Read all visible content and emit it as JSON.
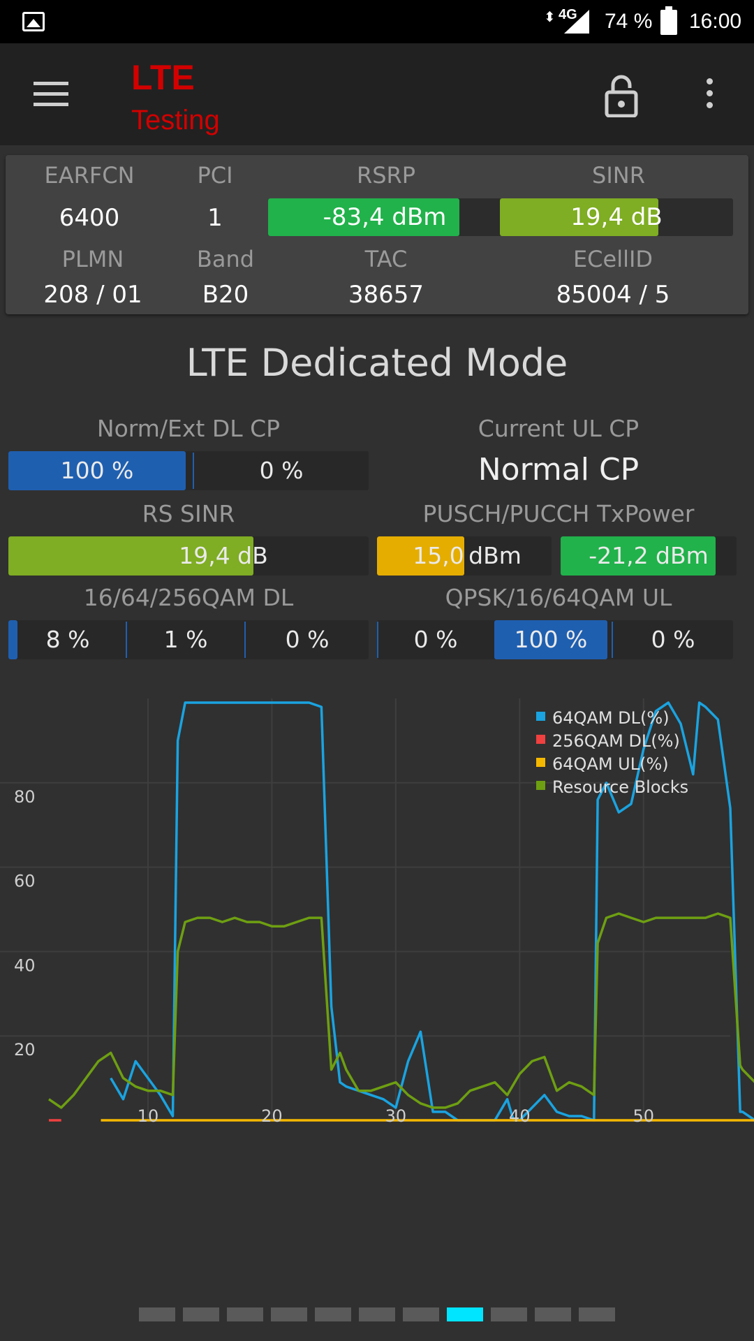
{
  "status_bar": {
    "network": "4G",
    "battery": "74 %",
    "time": "16:00"
  },
  "app": {
    "title_line1": "LTE",
    "title_line2": "Testing"
  },
  "cell_info": {
    "earfcn_label": "EARFCN",
    "earfcn": "6400",
    "pci_label": "PCI",
    "pci": "1",
    "rsrp_label": "RSRP",
    "rsrp": "-83,4 dBm",
    "rsrp_fill": 0.82,
    "sinr_label": "SINR",
    "sinr": "19,4 dB",
    "sinr_fill": 0.68,
    "plmn_label": "PLMN",
    "plmn": "208 / 01",
    "band_label": "Band",
    "band": "B20",
    "tac_label": "TAC",
    "tac": "38657",
    "ecellid_label": "ECellID",
    "ecellid": "85004 / 5"
  },
  "dedicated": {
    "title": "LTE Dedicated Mode",
    "dl_cp_label": "Norm/Ext DL CP",
    "dl_cp_normal": "100 %",
    "dl_cp_ext": "0 %",
    "ul_cp_label": "Current UL CP",
    "ul_cp_value": "Normal CP",
    "rs_sinr_label": "RS SINR",
    "rs_sinr": "19,4 dB",
    "rs_sinr_fill": 0.68,
    "txpower_label": "PUSCH/PUCCH TxPower",
    "pusch_value": "15,0",
    "pusch_unit": "dBm",
    "pusch_fill": 0.5,
    "pucch": "-21,2 dBm",
    "pucch_fill": 0.88,
    "qam_dl_label": "16/64/256QAM DL",
    "qam_dl": [
      "8 %",
      "1 %",
      "0 %"
    ],
    "qam_ul_label": "QPSK/16/64QAM UL",
    "qam_ul": [
      "0 %",
      "100 %",
      "0 %"
    ]
  },
  "chart_data": {
    "type": "line",
    "xlim": [
      2,
      57
    ],
    "ylim": [
      0,
      100
    ],
    "x_ticks": [
      10,
      20,
      30,
      40,
      50
    ],
    "y_ticks": [
      20,
      40,
      60,
      80
    ],
    "grid": true,
    "legend_position": "top-right",
    "series": [
      {
        "name": "64QAM DL(%)",
        "color": "#1aa3e0",
        "points": [
          [
            7,
            10
          ],
          [
            8,
            5
          ],
          [
            9,
            14
          ],
          [
            10,
            10
          ],
          [
            11,
            6
          ],
          [
            12,
            1
          ],
          [
            12.4,
            90
          ],
          [
            13,
            99
          ],
          [
            14,
            99
          ],
          [
            15,
            99
          ],
          [
            16,
            99
          ],
          [
            17,
            99
          ],
          [
            18,
            99
          ],
          [
            19,
            99
          ],
          [
            20,
            99
          ],
          [
            21,
            99
          ],
          [
            22,
            99
          ],
          [
            23,
            99
          ],
          [
            24,
            98
          ],
          [
            24.8,
            27
          ],
          [
            25.5,
            9
          ],
          [
            26,
            8
          ],
          [
            27,
            7
          ],
          [
            28,
            6
          ],
          [
            29,
            5
          ],
          [
            30,
            3
          ],
          [
            31,
            14
          ],
          [
            32,
            21
          ],
          [
            33,
            2
          ],
          [
            34,
            2
          ],
          [
            35,
            0
          ],
          [
            36,
            0
          ],
          [
            37,
            0
          ],
          [
            38,
            0
          ],
          [
            39,
            5
          ],
          [
            39.5,
            0
          ],
          [
            40,
            0
          ],
          [
            41,
            3
          ],
          [
            42,
            6
          ],
          [
            43,
            2
          ],
          [
            44,
            1
          ],
          [
            45,
            1
          ],
          [
            46,
            0
          ],
          [
            46.3,
            76
          ],
          [
            47,
            80
          ],
          [
            48,
            73
          ],
          [
            49,
            75
          ],
          [
            50,
            88
          ],
          [
            51,
            97
          ],
          [
            52,
            99
          ],
          [
            53,
            94
          ],
          [
            54,
            82
          ],
          [
            54.5,
            99
          ],
          [
            55,
            98
          ],
          [
            56,
            95
          ],
          [
            57,
            74
          ],
          [
            57.8,
            2
          ],
          [
            58,
            2
          ],
          [
            59,
            0
          ]
        ]
      },
      {
        "name": "256QAM DL(%)",
        "color": "#f04040",
        "points": [
          [
            2,
            0
          ],
          [
            3,
            0
          ]
        ]
      },
      {
        "name": "64QAM UL(%)",
        "color": "#f5b800",
        "points": [
          [
            6.2,
            0
          ],
          [
            59,
            0
          ]
        ]
      },
      {
        "name": "Resource Blocks",
        "color": "#6e9f12",
        "points": [
          [
            2,
            5
          ],
          [
            3,
            3
          ],
          [
            4,
            6
          ],
          [
            5,
            10
          ],
          [
            6,
            14
          ],
          [
            7,
            16
          ],
          [
            8,
            10
          ],
          [
            9,
            8
          ],
          [
            10,
            7
          ],
          [
            11,
            7
          ],
          [
            12,
            6
          ],
          [
            12.4,
            40
          ],
          [
            13,
            47
          ],
          [
            14,
            48
          ],
          [
            15,
            48
          ],
          [
            16,
            47
          ],
          [
            17,
            48
          ],
          [
            18,
            47
          ],
          [
            19,
            47
          ],
          [
            20,
            46
          ],
          [
            21,
            46
          ],
          [
            22,
            47
          ],
          [
            23,
            48
          ],
          [
            24,
            48
          ],
          [
            24.8,
            12
          ],
          [
            25.5,
            16
          ],
          [
            26,
            12
          ],
          [
            27,
            7
          ],
          [
            28,
            7
          ],
          [
            29,
            8
          ],
          [
            30,
            9
          ],
          [
            31,
            6
          ],
          [
            32,
            4
          ],
          [
            33,
            3
          ],
          [
            34,
            3
          ],
          [
            35,
            4
          ],
          [
            36,
            7
          ],
          [
            37,
            8
          ],
          [
            38,
            9
          ],
          [
            39,
            6
          ],
          [
            40,
            11
          ],
          [
            41,
            14
          ],
          [
            42,
            15
          ],
          [
            43,
            7
          ],
          [
            44,
            9
          ],
          [
            45,
            8
          ],
          [
            46,
            6
          ],
          [
            46.3,
            42
          ],
          [
            47,
            48
          ],
          [
            48,
            49
          ],
          [
            49,
            48
          ],
          [
            50,
            47
          ],
          [
            51,
            48
          ],
          [
            52,
            48
          ],
          [
            53,
            48
          ],
          [
            54,
            48
          ],
          [
            55,
            48
          ],
          [
            56,
            49
          ],
          [
            57,
            48
          ],
          [
            57.8,
            13
          ],
          [
            58,
            12
          ],
          [
            59,
            9
          ]
        ]
      }
    ]
  },
  "pager": {
    "count": 11,
    "active": 7
  }
}
